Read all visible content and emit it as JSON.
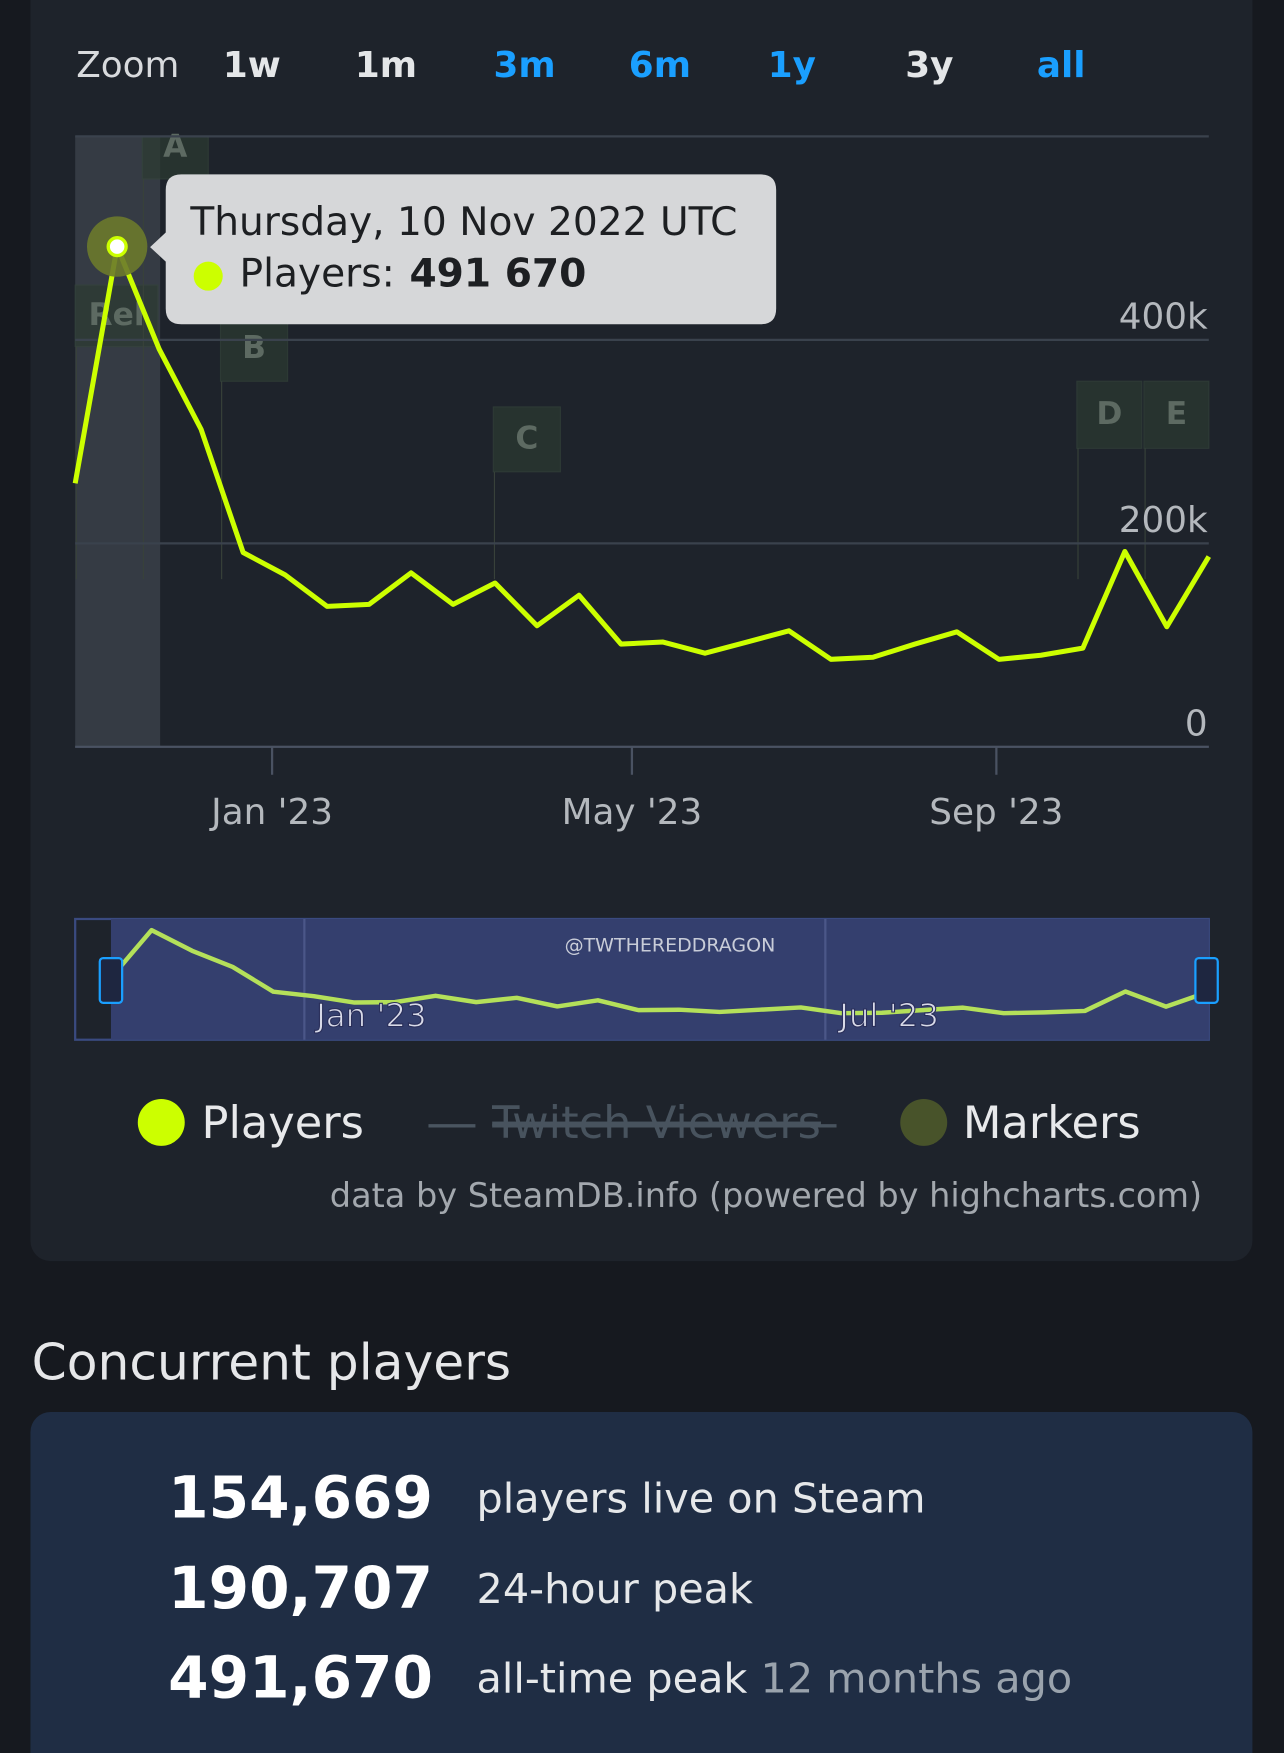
{
  "zoom": {
    "label": "Zoom",
    "buttons": [
      {
        "text": "1w",
        "active": false
      },
      {
        "text": "1m",
        "active": false
      },
      {
        "text": "3m",
        "active": true
      },
      {
        "text": "6m",
        "active": true
      },
      {
        "text": "1y",
        "active": true
      },
      {
        "text": "3y",
        "active": false
      },
      {
        "text": "all",
        "active": true
      }
    ]
  },
  "chart_data": {
    "type": "line",
    "categories": [
      null,
      null,
      null,
      null,
      null,
      null,
      null,
      null,
      null,
      null,
      null,
      null,
      null,
      null,
      null,
      null,
      null,
      null,
      null,
      null,
      null,
      null,
      null,
      null,
      null,
      null,
      null,
      null
    ],
    "series": [
      {
        "name": "Players",
        "color": "#ccff00",
        "values": [
          259000,
          491670,
          391000,
          312000,
          191000,
          169000,
          138000,
          140000,
          171000,
          140000,
          161000,
          119000,
          149000,
          101000,
          103000,
          92000,
          103000,
          114000,
          86000,
          88000,
          101000,
          113000,
          86000,
          90000,
          97000,
          192000,
          118000,
          187000
        ]
      }
    ],
    "hidden_series": [
      {
        "name": "Twitch Viewers"
      }
    ],
    "marker_series": {
      "name": "Markers",
      "color": "#48532a"
    },
    "ylim": [
      0,
      600000
    ],
    "yticks": [
      0,
      {
        "value": 200000,
        "label": "200k"
      },
      {
        "value": 400000,
        "label": "400k"
      }
    ],
    "xlim": [
      0,
      27
    ],
    "xticks": [
      {
        "value": 4.69,
        "label": "Jan '23"
      },
      {
        "value": 13.26,
        "label": "May '23"
      },
      {
        "value": 21.94,
        "label": "Sep '23"
      }
    ],
    "grid": true,
    "markers": [
      "Rel",
      "A",
      "B",
      "C",
      "D",
      "E"
    ],
    "tooltip": {
      "title": "Thursday, 10 Nov 2022 UTC",
      "label": "Players:",
      "value": "491 670"
    },
    "navigator": {
      "watermark": "@TWTHEREDDRAGON",
      "labels": [
        "Jan '23",
        "Jul '23"
      ]
    },
    "credits": "data by SteamDB.info (powered by highcharts.com)"
  },
  "section_title": "Concurrent players",
  "stats": [
    {
      "value": "154,669",
      "label": "players live on Steam"
    },
    {
      "value": "190,707",
      "label": "24-hour peak"
    },
    {
      "value": "491,670",
      "label": "all-time peak",
      "note": "12 months ago"
    }
  ]
}
